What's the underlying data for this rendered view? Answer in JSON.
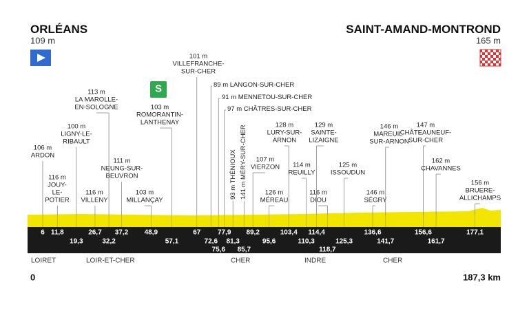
{
  "start": {
    "name": "ORLÉANS",
    "altitude": "109 m",
    "km": "0"
  },
  "finish": {
    "name": "SAINT-AMAND-MONTROND",
    "altitude": "165 m",
    "km": {
      "value": 187.3,
      "label": "187,3 km"
    }
  },
  "regions": [
    "LOIRET",
    "LOIR-ET-CHER",
    "CHER",
    "INDRE",
    "CHER"
  ],
  "sprint": "S",
  "towns": [
    {
      "altitude": "106 m",
      "name": [
        "ARDON"
      ],
      "km": 6
    },
    {
      "altitude": "116 m",
      "name": [
        "JOUY-",
        "LE-",
        "POTIER"
      ],
      "km": {
        "value": 11.8,
        "label": "11,8"
      }
    },
    {
      "altitude": "100 m",
      "name": [
        "LIGNY-LE-",
        "RIBAULT"
      ],
      "km": {
        "value": 19.3,
        "label": "19,3"
      }
    },
    {
      "altitude": "116 m",
      "name": [
        "VILLENY"
      ],
      "km": {
        "value": 26.7,
        "label": "26,7"
      }
    },
    {
      "altitude": "113 m",
      "name": [
        "LA MAROLLE-",
        "EN-SOLOGNE"
      ],
      "km": {
        "value": 32.2,
        "label": "32,2"
      }
    },
    {
      "altitude": "111 m",
      "name": [
        "NEUNG-SUR-",
        "BEUVRON"
      ],
      "km": {
        "value": 37.2,
        "label": "37,2"
      }
    },
    {
      "altitude": "103 m",
      "name": [
        "MILLANÇAY"
      ],
      "km": {
        "value": 48.9,
        "label": "48,9"
      }
    },
    {
      "altitude": "103 m",
      "name": [
        "ROMORANTIN-",
        "LANTHENAY"
      ],
      "km": {
        "value": 57.1,
        "label": "57,1"
      }
    },
    {
      "altitude": "101 m",
      "name": [
        "VILLEFRANCHE-",
        "SUR-CHER"
      ],
      "km": 67
    },
    {
      "altitude": "89 m",
      "name": [
        "LANGON-SUR-CHER"
      ],
      "km": {
        "value": 72.6,
        "label": "72,6"
      }
    },
    {
      "altitude": "91 m",
      "name": [
        "MENNETOU-SUR-CHER"
      ],
      "km": {
        "value": 75.6,
        "label": "75,6"
      }
    },
    {
      "altitude": "97 m",
      "name": [
        "CHÂTRES-SUR-CHER"
      ],
      "km": {
        "value": 77.9,
        "label": "77,9"
      }
    },
    {
      "altitude": "93 m",
      "name": [
        "THÉNIOUX"
      ],
      "km": {
        "value": 81.3,
        "label": "81,3"
      }
    },
    {
      "altitude": "141 m",
      "name": [
        "MÉRY-SUR-CHER"
      ],
      "km": {
        "value": 85.7,
        "label": "85,7"
      }
    },
    {
      "altitude": "107 m",
      "name": [
        "VIERZON"
      ],
      "km": {
        "value": 89.2,
        "label": "89,2"
      }
    },
    {
      "altitude": "126 m",
      "name": [
        "MÉREAU"
      ],
      "km": {
        "value": 95.6,
        "label": "95,6"
      }
    },
    {
      "altitude": "128 m",
      "name": [
        "LURY-SUR-",
        "ARNON"
      ],
      "km": {
        "value": 103.4,
        "label": "103,4"
      }
    },
    {
      "altitude": "114 m",
      "name": [
        "REUILLY"
      ],
      "km": {
        "value": 110.3,
        "label": "110,3"
      }
    },
    {
      "altitude": "129 m",
      "name": [
        "SAINTE-",
        "LIZAIGNE"
      ],
      "km": {
        "value": 114.4,
        "label": "114,4"
      }
    },
    {
      "altitude": "116 m",
      "name": [
        "DIOU"
      ],
      "km": {
        "value": 118.7,
        "label": "118,7"
      }
    },
    {
      "altitude": "125 m",
      "name": [
        "ISSOUDUN"
      ],
      "km": {
        "value": 125.3,
        "label": "125,3"
      }
    },
    {
      "altitude": "146 m",
      "name": [
        "SÉGRY"
      ],
      "km": {
        "value": 136.6,
        "label": "136,6"
      }
    },
    {
      "altitude": "146 m",
      "name": [
        "MAREUIL-",
        "SUR-ARNON"
      ],
      "km": {
        "value": 141.7,
        "label": "141,7"
      }
    },
    {
      "altitude": "147 m",
      "name": [
        "CHÂTEAUNEUF-",
        "SUR-CHER"
      ],
      "km": {
        "value": 156.6,
        "label": "156,6"
      }
    },
    {
      "altitude": "162 m",
      "name": [
        "CHAVANNES"
      ],
      "km": {
        "value": 161.7,
        "label": "161,7"
      }
    },
    {
      "altitude": "156 m",
      "name": [
        "BRUERE-",
        "ALLICHAMPS"
      ],
      "km": {
        "value": 177.1,
        "label": "177,1"
      }
    }
  ]
}
